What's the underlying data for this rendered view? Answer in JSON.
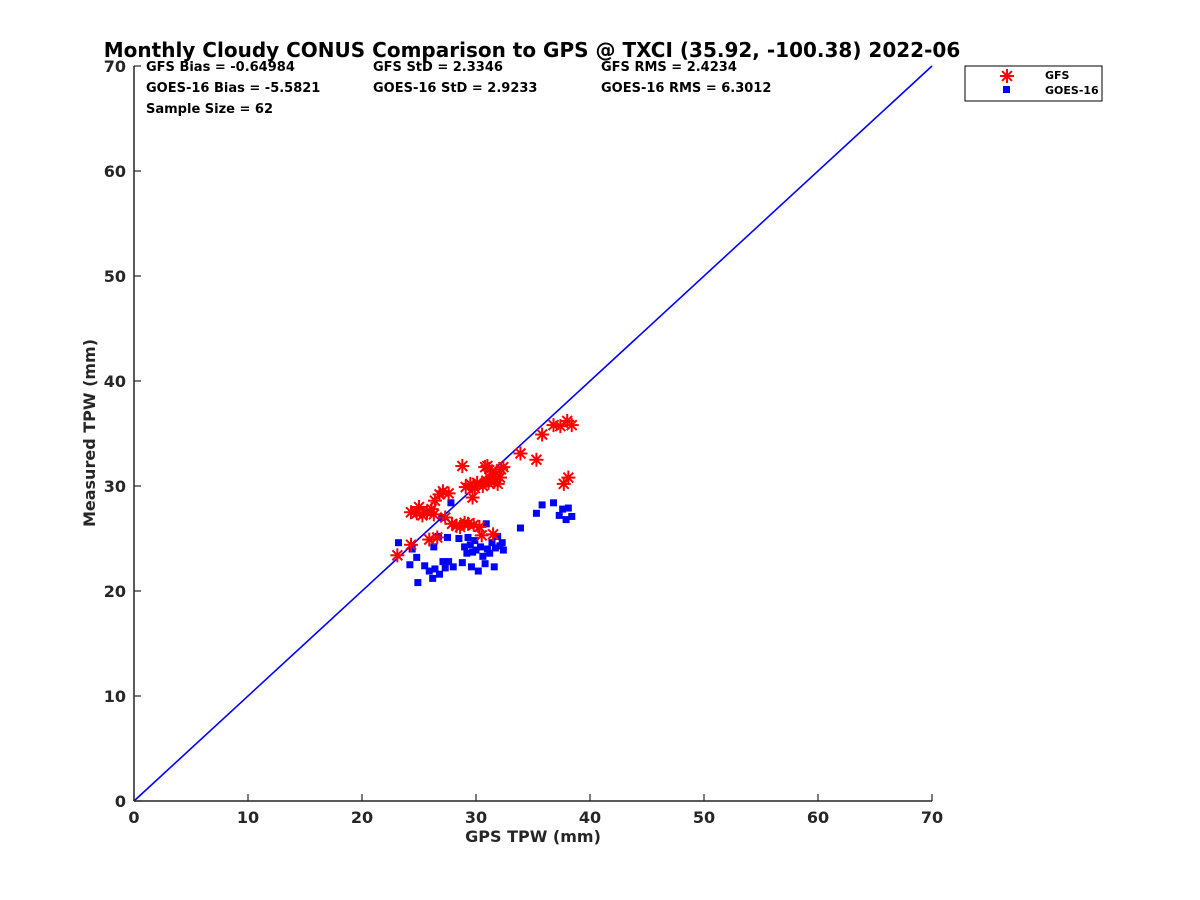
{
  "chart_data": {
    "type": "scatter",
    "title": "Monthly Cloudy CONUS Comparison to GPS @ TXCI (35.92, -100.38) 2022-06",
    "xlabel": "GPS TPW (mm)",
    "ylabel": "Measured TPW (mm)",
    "xlim": [
      0,
      70
    ],
    "ylim": [
      0,
      70
    ],
    "xticks": [
      "0",
      "10",
      "20",
      "30",
      "40",
      "50",
      "60",
      "70"
    ],
    "yticks": [
      "0",
      "10",
      "20",
      "30",
      "40",
      "50",
      "60",
      "70"
    ],
    "grid": false,
    "legend_position": "top-right outside",
    "stats": {
      "gfs_bias": "GFS Bias = -0.64984",
      "gfs_std": "GFS StD = 2.3346",
      "gfs_rms": "GFS RMS = 2.4234",
      "goes_bias": "GOES-16 Bias = -5.5821",
      "goes_std": "GOES-16 StD = 2.9233",
      "goes_rms": "GOES-16 RMS = 6.3012",
      "sample_size": "Sample Size = 62"
    },
    "reference_line": {
      "name": "1:1",
      "color": "#0000ff",
      "from": [
        0,
        0
      ],
      "to": [
        70,
        70
      ]
    },
    "series": [
      {
        "name": "GFS",
        "marker": "asterisk",
        "color": "#ff0000",
        "points": [
          [
            23.1,
            23.4
          ],
          [
            24.3,
            24.4
          ],
          [
            24.3,
            27.5
          ],
          [
            24.8,
            27.4
          ],
          [
            25.0,
            28.0
          ],
          [
            25.3,
            27.2
          ],
          [
            25.7,
            27.5
          ],
          [
            25.9,
            24.9
          ],
          [
            26.1,
            27.8
          ],
          [
            26.3,
            27.3
          ],
          [
            26.4,
            28.6
          ],
          [
            26.6,
            25.1
          ],
          [
            26.8,
            29.2
          ],
          [
            27.1,
            29.5
          ],
          [
            27.3,
            27.0
          ],
          [
            27.6,
            29.3
          ],
          [
            27.9,
            26.4
          ],
          [
            28.3,
            26.2
          ],
          [
            28.6,
            26.1
          ],
          [
            28.8,
            31.9
          ],
          [
            29.0,
            26.5
          ],
          [
            29.1,
            29.9
          ],
          [
            29.3,
            26.4
          ],
          [
            29.5,
            30.2
          ],
          [
            29.7,
            28.9
          ],
          [
            29.8,
            26.3
          ],
          [
            29.9,
            29.8
          ],
          [
            30.1,
            30.3
          ],
          [
            30.3,
            26.1
          ],
          [
            30.5,
            25.3
          ],
          [
            30.6,
            30.0
          ],
          [
            30.8,
            31.8
          ],
          [
            30.9,
            30.5
          ],
          [
            31.0,
            31.9
          ],
          [
            31.1,
            30.3
          ],
          [
            31.2,
            30.8
          ],
          [
            31.4,
            31.4
          ],
          [
            31.5,
            25.4
          ],
          [
            31.6,
            30.4
          ],
          [
            31.7,
            31.1
          ],
          [
            31.9,
            30.2
          ],
          [
            32.1,
            30.8
          ],
          [
            32.2,
            31.6
          ],
          [
            32.4,
            31.8
          ],
          [
            33.9,
            33.1
          ],
          [
            35.3,
            32.5
          ],
          [
            35.8,
            34.9
          ],
          [
            36.8,
            35.8
          ],
          [
            37.4,
            35.7
          ],
          [
            37.7,
            30.2
          ],
          [
            38.0,
            36.2
          ],
          [
            38.1,
            30.8
          ],
          [
            38.4,
            35.8
          ]
        ]
      },
      {
        "name": "GOES-16",
        "marker": "square",
        "color": "#0000ff",
        "points": [
          [
            23.2,
            24.6
          ],
          [
            24.2,
            22.5
          ],
          [
            24.4,
            24.0
          ],
          [
            24.8,
            23.2
          ],
          [
            24.9,
            20.8
          ],
          [
            25.5,
            22.4
          ],
          [
            25.9,
            21.9
          ],
          [
            26.2,
            21.2
          ],
          [
            26.3,
            24.2
          ],
          [
            26.4,
            22.1
          ],
          [
            26.7,
            25.2
          ],
          [
            26.8,
            21.6
          ],
          [
            27.0,
            27.0
          ],
          [
            27.1,
            22.8
          ],
          [
            27.3,
            22.2
          ],
          [
            27.5,
            25.1
          ],
          [
            27.6,
            22.8
          ],
          [
            27.8,
            28.4
          ],
          [
            28.0,
            22.3
          ],
          [
            28.5,
            25.0
          ],
          [
            28.8,
            22.7
          ],
          [
            29.0,
            24.2
          ],
          [
            29.2,
            23.6
          ],
          [
            29.3,
            25.1
          ],
          [
            29.5,
            24.4
          ],
          [
            29.6,
            22.3
          ],
          [
            29.7,
            23.7
          ],
          [
            29.9,
            24.8
          ],
          [
            30.0,
            23.9
          ],
          [
            30.2,
            21.9
          ],
          [
            30.4,
            24.2
          ],
          [
            30.6,
            23.3
          ],
          [
            30.8,
            22.6
          ],
          [
            30.9,
            26.4
          ],
          [
            31.0,
            24.0
          ],
          [
            31.2,
            23.6
          ],
          [
            31.4,
            24.6
          ],
          [
            31.6,
            22.3
          ],
          [
            31.7,
            24.1
          ],
          [
            31.9,
            25.2
          ],
          [
            32.1,
            24.3
          ],
          [
            32.3,
            24.6
          ],
          [
            32.4,
            23.9
          ],
          [
            33.9,
            26.0
          ],
          [
            35.3,
            27.4
          ],
          [
            35.8,
            28.2
          ],
          [
            36.8,
            28.4
          ],
          [
            37.3,
            27.2
          ],
          [
            37.6,
            27.8
          ],
          [
            37.9,
            26.8
          ],
          [
            38.1,
            27.9
          ],
          [
            38.4,
            27.1
          ]
        ]
      }
    ]
  }
}
